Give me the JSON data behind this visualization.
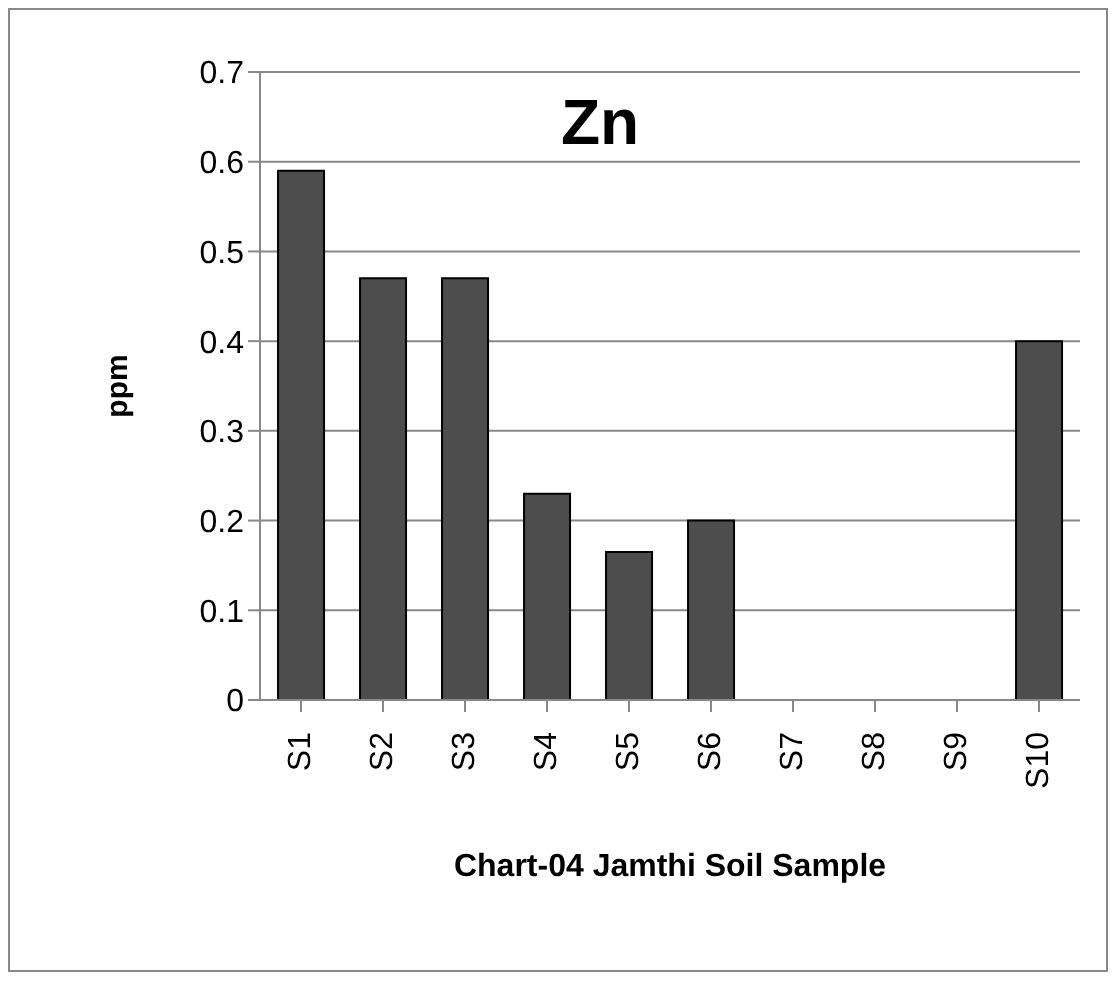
{
  "chart_data": {
    "type": "bar",
    "title": "Zn",
    "xlabel": "Chart-04 Jamthi Soil Sample",
    "ylabel": "ppm",
    "categories": [
      "S1",
      "S2",
      "S3",
      "S4",
      "S5",
      "S6",
      "S7",
      "S8",
      "S9",
      "S10"
    ],
    "values": [
      0.59,
      0.47,
      0.47,
      0.23,
      0.165,
      0.2,
      0,
      0,
      0,
      0.4
    ],
    "color": "#4d4d4d",
    "ylim": [
      0,
      0.7
    ],
    "yticks": [
      0,
      0.1,
      0.2,
      0.3,
      0.4,
      0.5,
      0.6,
      0.7
    ],
    "grid": "y"
  }
}
